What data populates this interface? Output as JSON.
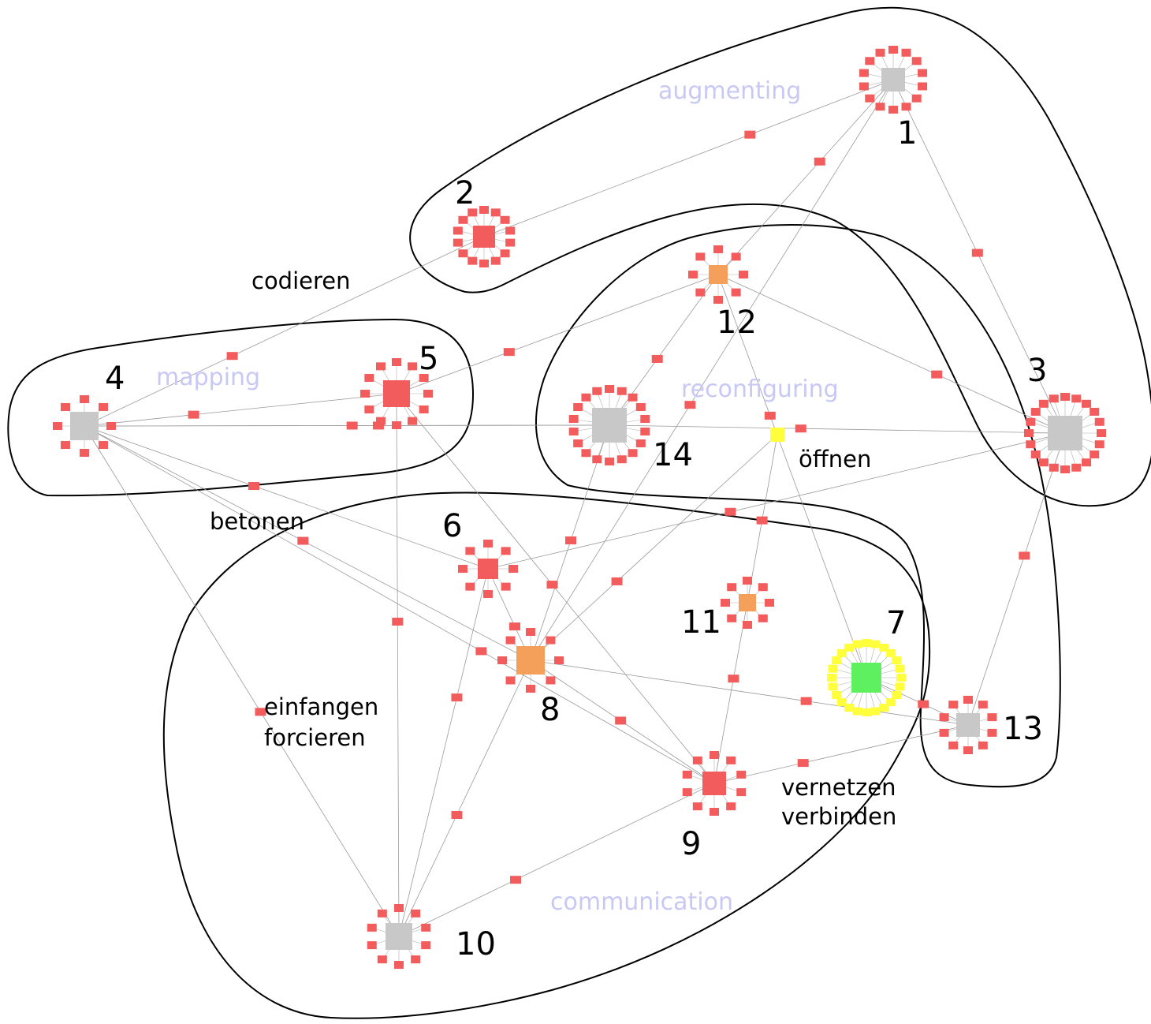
{
  "colors": {
    "gray": "#c8c8c8",
    "red": "#f25c5c",
    "orange": "#f5a05a",
    "yellow": "#ffff3c",
    "green": "#5ef05e",
    "cluster_label": "#c8c8f5"
  },
  "clusters": [
    {
      "id": "augmenting",
      "label": "augmenting"
    },
    {
      "id": "mapping",
      "label": "mapping"
    },
    {
      "id": "reconfiguring",
      "label": "reconfiguring"
    },
    {
      "id": "communication",
      "label": "communication"
    }
  ],
  "hubs": [
    {
      "id": "1",
      "label": "1",
      "color": "gray"
    },
    {
      "id": "2",
      "label": "2",
      "color": "red"
    },
    {
      "id": "3",
      "label": "3",
      "color": "gray"
    },
    {
      "id": "4",
      "label": "4",
      "color": "gray"
    },
    {
      "id": "5",
      "label": "5",
      "color": "red"
    },
    {
      "id": "6",
      "label": "6",
      "color": "red"
    },
    {
      "id": "7",
      "label": "7",
      "color": "green"
    },
    {
      "id": "8",
      "label": "8",
      "color": "orange"
    },
    {
      "id": "9",
      "label": "9",
      "color": "red"
    },
    {
      "id": "10",
      "label": "10",
      "color": "gray"
    },
    {
      "id": "11",
      "label": "11",
      "color": "orange"
    },
    {
      "id": "12",
      "label": "12",
      "color": "orange"
    },
    {
      "id": "13",
      "label": "13",
      "color": "gray"
    },
    {
      "id": "14",
      "label": "14",
      "color": "gray"
    }
  ],
  "word_labels": [
    {
      "id": "codieren",
      "text": "codieren"
    },
    {
      "id": "betonen",
      "text": "betonen"
    },
    {
      "id": "oeffnen",
      "text": "öffnen"
    },
    {
      "id": "einfangen",
      "text": "einfangen"
    },
    {
      "id": "forcieren",
      "text": "forcieren"
    },
    {
      "id": "vernetzen",
      "text": "vernetzen"
    },
    {
      "id": "verbinden",
      "text": "verbinden"
    }
  ],
  "edges": [
    [
      "1",
      "2"
    ],
    [
      "1",
      "12"
    ],
    [
      "1",
      "3"
    ],
    [
      "1",
      "8"
    ],
    [
      "2",
      "4"
    ],
    [
      "4",
      "5"
    ],
    [
      "4",
      "6"
    ],
    [
      "4",
      "8"
    ],
    [
      "4",
      "10"
    ],
    [
      "4",
      "9"
    ],
    [
      "5",
      "12"
    ],
    [
      "5",
      "10"
    ],
    [
      "5",
      "9"
    ],
    [
      "12",
      "14"
    ],
    [
      "12",
      "3"
    ],
    [
      "12",
      "7"
    ],
    [
      "14",
      "3"
    ],
    [
      "14",
      "8"
    ],
    [
      "4",
      "14"
    ],
    [
      "6",
      "8"
    ],
    [
      "6",
      "10"
    ],
    [
      "6",
      "3"
    ],
    [
      "8",
      "9"
    ],
    [
      "8",
      "10"
    ],
    [
      "8",
      "13"
    ],
    [
      "8",
      "Y"
    ],
    [
      "11",
      "9"
    ],
    [
      "11",
      "Y"
    ],
    [
      "7",
      "13"
    ],
    [
      "9",
      "10"
    ],
    [
      "9",
      "13"
    ],
    [
      "3",
      "13"
    ],
    [
      "14",
      "4"
    ]
  ]
}
